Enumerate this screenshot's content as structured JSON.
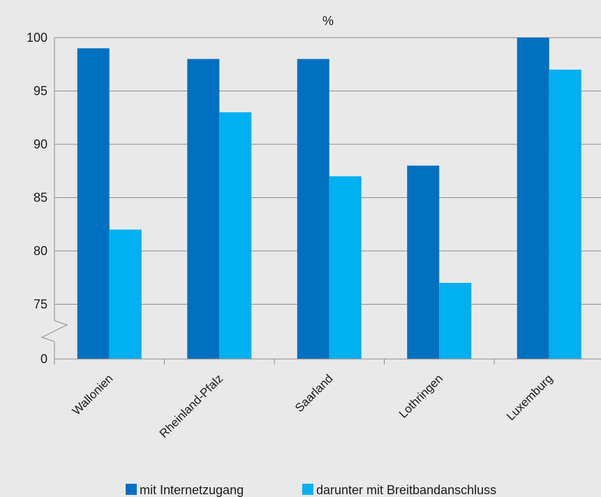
{
  "chart_data": {
    "type": "bar",
    "unit_label": "%",
    "categories": [
      "Wallonien",
      "Rheinland-Pfalz",
      "Saarland",
      "Lothringen",
      "Luxemburg"
    ],
    "series": [
      {
        "name": "mit Internetzugang",
        "color": "#0070c0",
        "values": [
          99,
          98,
          98,
          88,
          100
        ]
      },
      {
        "name": "darunter mit Breitbandanschluss",
        "color": "#00b0f0",
        "values": [
          82,
          93,
          87,
          77,
          97
        ]
      }
    ],
    "y_ticks": [
      "0",
      "75",
      "80",
      "85",
      "90",
      "95",
      "100"
    ],
    "ylim": [
      0,
      100
    ],
    "y_axis_break": "between 0 and 75",
    "grid": true,
    "legend_position": "bottom"
  }
}
